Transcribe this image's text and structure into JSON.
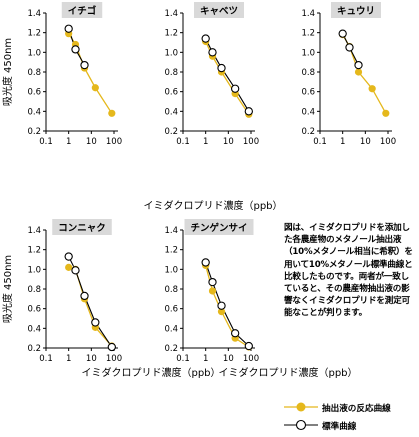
{
  "chart_data": [
    {
      "type": "line",
      "title": "イチゴ",
      "ylabel": "吸光度 450nm",
      "xlabel": "",
      "xscale": "log",
      "xticks": [
        "0.1",
        "1",
        "10",
        "100"
      ],
      "yticks": [
        "0.2",
        "0.4",
        "0.6",
        "0.8",
        "1.0",
        "1.2",
        "1.4"
      ],
      "ylim": [
        0.2,
        1.4
      ],
      "series": [
        {
          "name": "抽出液の反応曲線",
          "x": [
            1,
            2,
            5,
            15,
            80
          ],
          "y": [
            1.19,
            1.08,
            0.84,
            0.64,
            0.38
          ]
        },
        {
          "name": "標準曲線",
          "x": [
            1,
            2,
            5
          ],
          "y": [
            1.24,
            1.03,
            0.87
          ]
        }
      ]
    },
    {
      "type": "line",
      "title": "キャベツ",
      "ylabel": "",
      "xlabel": "",
      "xscale": "log",
      "xticks": [
        "0.1",
        "1",
        "10",
        "100"
      ],
      "yticks": [
        "0.2",
        "0.4",
        "0.6",
        "0.8",
        "1.0",
        "1.2",
        "1.4"
      ],
      "ylim": [
        0.2,
        1.4
      ],
      "series": [
        {
          "name": "抽出液の反応曲線",
          "x": [
            1,
            2,
            5,
            20,
            80
          ],
          "y": [
            1.11,
            0.96,
            0.8,
            0.58,
            0.37
          ]
        },
        {
          "name": "標準曲線",
          "x": [
            1,
            2,
            5,
            20,
            80
          ],
          "y": [
            1.14,
            1.0,
            0.84,
            0.63,
            0.4
          ]
        }
      ]
    },
    {
      "type": "line",
      "title": "キュウリ",
      "ylabel": "",
      "xlabel": "",
      "xscale": "log",
      "xticks": [
        "0.1",
        "1",
        "10",
        "100"
      ],
      "yticks": [
        "0.2",
        "0.4",
        "0.6",
        "0.8",
        "1.0",
        "1.2",
        "1.4"
      ],
      "ylim": [
        0.2,
        1.4
      ],
      "series": [
        {
          "name": "抽出液の反応曲線",
          "x": [
            1,
            2,
            5,
            20,
            80
          ],
          "y": [
            1.18,
            1.06,
            0.8,
            0.63,
            0.38
          ]
        },
        {
          "name": "標準曲線",
          "x": [
            1,
            2,
            5
          ],
          "y": [
            1.19,
            1.05,
            0.87
          ]
        }
      ]
    },
    {
      "type": "line",
      "title": "コンニャク",
      "ylabel": "吸光度 450nm",
      "xlabel": "イミダクロプリド濃度（ppb）",
      "xscale": "log",
      "xticks": [
        "0.1",
        "1",
        "10",
        "100"
      ],
      "yticks": [
        "0.2",
        "0.4",
        "0.6",
        "0.8",
        "1.0",
        "1.2",
        "1.4"
      ],
      "ylim": [
        0.2,
        1.4
      ],
      "series": [
        {
          "name": "抽出液の反応曲線",
          "x": [
            1,
            2,
            5,
            15,
            80
          ],
          "y": [
            1.02,
            1.0,
            0.7,
            0.41,
            0.22
          ]
        },
        {
          "name": "標準曲線",
          "x": [
            1,
            2,
            5,
            15,
            80
          ],
          "y": [
            1.13,
            0.99,
            0.73,
            0.46,
            0.21
          ]
        }
      ]
    },
    {
      "type": "line",
      "title": "チンゲンサイ",
      "ylabel": "",
      "xlabel": "イミダクロプリド濃度（ppb）",
      "xscale": "log",
      "xticks": [
        "0.1",
        "1",
        "10",
        "100"
      ],
      "yticks": [
        "0.2",
        "0.4",
        "0.6",
        "0.8",
        "1.0",
        "1.2",
        "1.4"
      ],
      "ylim": [
        0.2,
        1.4
      ],
      "series": [
        {
          "name": "抽出液の反応曲線",
          "x": [
            1,
            2,
            5,
            20,
            80
          ],
          "y": [
            1.04,
            0.78,
            0.57,
            0.3,
            0.21
          ]
        },
        {
          "name": "標準曲線",
          "x": [
            1,
            2,
            5,
            20,
            80
          ],
          "y": [
            1.07,
            0.87,
            0.63,
            0.35,
            0.22
          ]
        }
      ]
    }
  ],
  "top_xlabel": "イミダクロプリド濃度（ppb）",
  "caption": "図は、イミダクロプリドを添加した各農産物のメタノール抽出液（10%メタノール相当に希釈）を用いて10%メタノール標準曲線と比較したものです。両者が一致していると、その農産物抽出液の影響なくイミダクロプリドを測定可能なことが判ります。",
  "legend": {
    "items": [
      {
        "label": "抽出液の反応曲線",
        "marker": "filled-circle"
      },
      {
        "label": "標準曲線",
        "marker": "open-circle"
      }
    ]
  },
  "colors": {
    "extract": "#E5B81C",
    "standard": "#000000",
    "title_box": "#D9D9D9"
  }
}
